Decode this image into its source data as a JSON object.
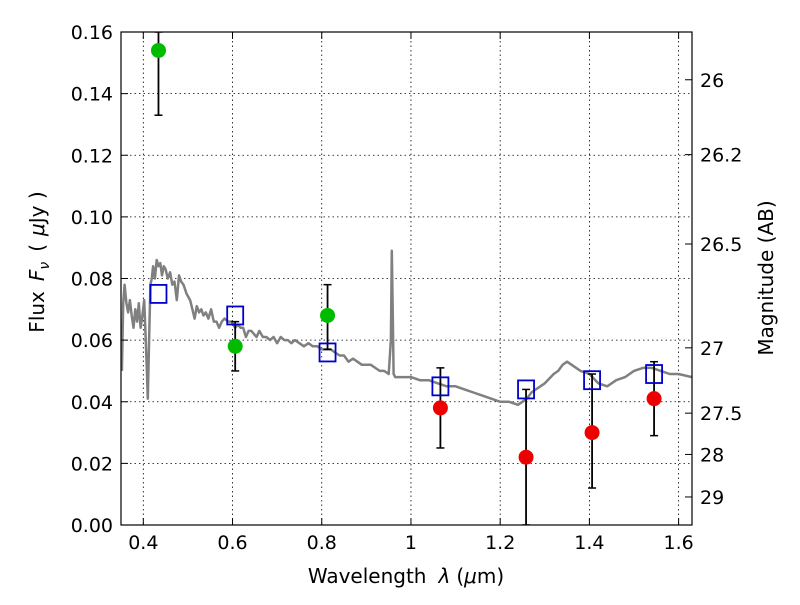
{
  "chart_data": {
    "type": "scatter",
    "xlabel": {
      "text": "Wavelength",
      "symbol": "λ",
      "unit_prefix": "(",
      "unit_greek": "μ",
      "unit_rest": "m)"
    },
    "ylabel": {
      "text": "Flux",
      "symbol_main": "F",
      "symbol_sub": "ν",
      "unit_open": "(",
      "unit_greek": "μ",
      "unit_rest": "Jy )"
    },
    "y2label": "Magnitude (AB)",
    "xlim": [
      0.35,
      1.63
    ],
    "ylim": [
      0.0,
      0.16
    ],
    "grid": true,
    "x_ticks": [
      {
        "value": 0.4,
        "label": "0.4"
      },
      {
        "value": 0.6,
        "label": "0.6"
      },
      {
        "value": 0.8,
        "label": "0.8"
      },
      {
        "value": 1.0,
        "label": "1"
      },
      {
        "value": 1.2,
        "label": "1.2"
      },
      {
        "value": 1.4,
        "label": "1.4"
      },
      {
        "value": 1.6,
        "label": "1.6"
      }
    ],
    "y_ticks": [
      {
        "value": 0.0,
        "label": "0.00"
      },
      {
        "value": 0.02,
        "label": "0.02"
      },
      {
        "value": 0.04,
        "label": "0.04"
      },
      {
        "value": 0.06,
        "label": "0.06"
      },
      {
        "value": 0.08,
        "label": "0.08"
      },
      {
        "value": 0.1,
        "label": "0.10"
      },
      {
        "value": 0.12,
        "label": "0.12"
      },
      {
        "value": 0.14,
        "label": "0.14"
      },
      {
        "value": 0.16,
        "label": "0.16"
      }
    ],
    "y2_ticks": [
      {
        "flux": 0.1445,
        "label": "26"
      },
      {
        "flux": 0.1202,
        "label": "26.2"
      },
      {
        "flux": 0.0912,
        "label": "26.5"
      },
      {
        "flux": 0.0575,
        "label": "27"
      },
      {
        "flux": 0.0363,
        "label": "27.5"
      },
      {
        "flux": 0.0229,
        "label": "28"
      },
      {
        "flux": 0.0091,
        "label": "29"
      }
    ],
    "series": [
      {
        "kind": "line",
        "color": "#808080",
        "points": [
          [
            0.352,
            0.05
          ],
          [
            0.355,
            0.072
          ],
          [
            0.358,
            0.078
          ],
          [
            0.362,
            0.072
          ],
          [
            0.366,
            0.069
          ],
          [
            0.37,
            0.073
          ],
          [
            0.374,
            0.068
          ],
          [
            0.378,
            0.064
          ],
          [
            0.382,
            0.07
          ],
          [
            0.386,
            0.066
          ],
          [
            0.39,
            0.072
          ],
          [
            0.394,
            0.064
          ],
          [
            0.398,
            0.068
          ],
          [
            0.402,
            0.073
          ],
          [
            0.405,
            0.062
          ],
          [
            0.408,
            0.05
          ],
          [
            0.41,
            0.041
          ],
          [
            0.413,
            0.06
          ],
          [
            0.416,
            0.078
          ],
          [
            0.419,
            0.08
          ],
          [
            0.422,
            0.084
          ],
          [
            0.426,
            0.08
          ],
          [
            0.43,
            0.086
          ],
          [
            0.434,
            0.084
          ],
          [
            0.438,
            0.085
          ],
          [
            0.442,
            0.081
          ],
          [
            0.446,
            0.084
          ],
          [
            0.45,
            0.083
          ],
          [
            0.455,
            0.08
          ],
          [
            0.46,
            0.082
          ],
          [
            0.465,
            0.078
          ],
          [
            0.47,
            0.079
          ],
          [
            0.475,
            0.073
          ],
          [
            0.48,
            0.081
          ],
          [
            0.485,
            0.079
          ],
          [
            0.49,
            0.078
          ],
          [
            0.497,
            0.075
          ],
          [
            0.505,
            0.073
          ],
          [
            0.51,
            0.07
          ],
          [
            0.515,
            0.067
          ],
          [
            0.52,
            0.071
          ],
          [
            0.525,
            0.069
          ],
          [
            0.53,
            0.07
          ],
          [
            0.535,
            0.068
          ],
          [
            0.54,
            0.069
          ],
          [
            0.546,
            0.067
          ],
          [
            0.552,
            0.07
          ],
          [
            0.558,
            0.066
          ],
          [
            0.564,
            0.066
          ],
          [
            0.57,
            0.064
          ],
          [
            0.576,
            0.066
          ],
          [
            0.582,
            0.067
          ],
          [
            0.59,
            0.066
          ],
          [
            0.598,
            0.066
          ],
          [
            0.606,
            0.064
          ],
          [
            0.612,
            0.065
          ],
          [
            0.618,
            0.064
          ],
          [
            0.624,
            0.064
          ],
          [
            0.63,
            0.061
          ],
          [
            0.636,
            0.063
          ],
          [
            0.642,
            0.063
          ],
          [
            0.648,
            0.062
          ],
          [
            0.654,
            0.061
          ],
          [
            0.66,
            0.063
          ],
          [
            0.668,
            0.061
          ],
          [
            0.676,
            0.061
          ],
          [
            0.684,
            0.06
          ],
          [
            0.692,
            0.061
          ],
          [
            0.7,
            0.059
          ],
          [
            0.708,
            0.061
          ],
          [
            0.716,
            0.06
          ],
          [
            0.724,
            0.06
          ],
          [
            0.732,
            0.059
          ],
          [
            0.74,
            0.06
          ],
          [
            0.75,
            0.059
          ],
          [
            0.76,
            0.058
          ],
          [
            0.77,
            0.059
          ],
          [
            0.78,
            0.058
          ],
          [
            0.79,
            0.058
          ],
          [
            0.8,
            0.057
          ],
          [
            0.81,
            0.057
          ],
          [
            0.82,
            0.057
          ],
          [
            0.83,
            0.056
          ],
          [
            0.84,
            0.055
          ],
          [
            0.85,
            0.055
          ],
          [
            0.86,
            0.053
          ],
          [
            0.87,
            0.054
          ],
          [
            0.88,
            0.053
          ],
          [
            0.89,
            0.052
          ],
          [
            0.9,
            0.052
          ],
          [
            0.91,
            0.052
          ],
          [
            0.92,
            0.051
          ],
          [
            0.93,
            0.05
          ],
          [
            0.94,
            0.05
          ],
          [
            0.95,
            0.049
          ],
          [
            0.955,
            0.06
          ],
          [
            0.957,
            0.089
          ],
          [
            0.959,
            0.07
          ],
          [
            0.961,
            0.049
          ],
          [
            0.965,
            0.048
          ],
          [
            0.98,
            0.048
          ],
          [
            1.0,
            0.048
          ],
          [
            1.02,
            0.047
          ],
          [
            1.04,
            0.047
          ],
          [
            1.06,
            0.046
          ],
          [
            1.08,
            0.045
          ],
          [
            1.1,
            0.045
          ],
          [
            1.12,
            0.044
          ],
          [
            1.14,
            0.043
          ],
          [
            1.16,
            0.042
          ],
          [
            1.18,
            0.041
          ],
          [
            1.2,
            0.04
          ],
          [
            1.22,
            0.04
          ],
          [
            1.24,
            0.039
          ],
          [
            1.26,
            0.041
          ],
          [
            1.27,
            0.043
          ],
          [
            1.28,
            0.044
          ],
          [
            1.3,
            0.046
          ],
          [
            1.32,
            0.049
          ],
          [
            1.33,
            0.05
          ],
          [
            1.34,
            0.052
          ],
          [
            1.35,
            0.053
          ],
          [
            1.36,
            0.052
          ],
          [
            1.38,
            0.05
          ],
          [
            1.4,
            0.049
          ],
          [
            1.42,
            0.046
          ],
          [
            1.44,
            0.045
          ],
          [
            1.46,
            0.047
          ],
          [
            1.48,
            0.048
          ],
          [
            1.5,
            0.05
          ],
          [
            1.52,
            0.051
          ],
          [
            1.54,
            0.051
          ],
          [
            1.56,
            0.05
          ],
          [
            1.58,
            0.049
          ],
          [
            1.6,
            0.049
          ],
          [
            1.63,
            0.048
          ]
        ]
      },
      {
        "kind": "squares",
        "color": "#0000cc",
        "points": [
          [
            0.434,
            0.075
          ],
          [
            0.606,
            0.068
          ],
          [
            0.813,
            0.056
          ],
          [
            1.066,
            0.045
          ],
          [
            1.258,
            0.044
          ],
          [
            1.406,
            0.047
          ],
          [
            1.545,
            0.049
          ]
        ]
      },
      {
        "kind": "circles",
        "color": "#00bb00",
        "points": [
          {
            "x": 0.434,
            "y": 0.154,
            "lo": 0.133,
            "hi": 0.16
          },
          {
            "x": 0.606,
            "y": 0.058,
            "lo": 0.05,
            "hi": 0.066
          },
          {
            "x": 0.813,
            "y": 0.068,
            "lo": 0.057,
            "hi": 0.078
          }
        ]
      },
      {
        "kind": "circles",
        "color": "#ee0000",
        "points": [
          {
            "x": 1.066,
            "y": 0.038,
            "lo": 0.025,
            "hi": 0.051
          },
          {
            "x": 1.258,
            "y": 0.022,
            "lo": 0.0,
            "hi": 0.044
          },
          {
            "x": 1.406,
            "y": 0.03,
            "lo": 0.012,
            "hi": 0.049
          },
          {
            "x": 1.545,
            "y": 0.041,
            "lo": 0.029,
            "hi": 0.053
          }
        ]
      }
    ]
  }
}
